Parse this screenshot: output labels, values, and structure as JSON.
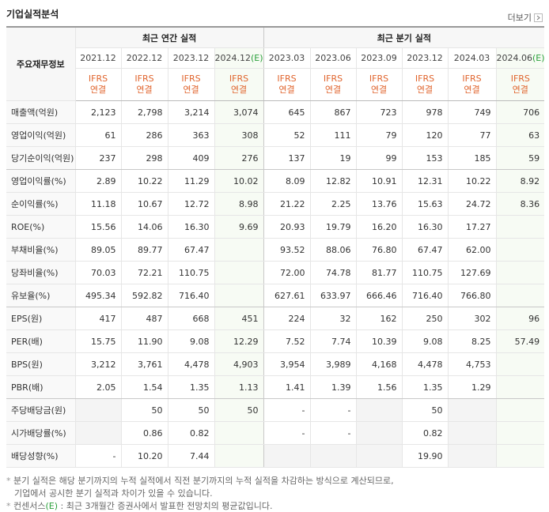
{
  "header": {
    "title": "기업실적분석",
    "more": "더보기"
  },
  "table": {
    "corner": "주요재무정보",
    "groups": [
      "최근 연간 실적",
      "최근 분기 실적"
    ],
    "group_spans": [
      4,
      6
    ],
    "periods": [
      {
        "label": "2021.12"
      },
      {
        "label": "2022.12"
      },
      {
        "label": "2023.12"
      },
      {
        "label": "2024.12",
        "mark": "(E)"
      },
      {
        "label": "2023.03"
      },
      {
        "label": "2023.06"
      },
      {
        "label": "2023.09"
      },
      {
        "label": "2023.12"
      },
      {
        "label": "2024.03"
      },
      {
        "label": "2024.06",
        "mark": "(E)"
      }
    ],
    "standard": [
      "IFRS",
      "연결"
    ],
    "rows": [
      {
        "label": "매출액(억원)",
        "cells": [
          "2,123",
          "2,798",
          "3,214",
          "3,074",
          "645",
          "867",
          "723",
          "978",
          "749",
          "706"
        ]
      },
      {
        "label": "영업이익(억원)",
        "cells": [
          "61",
          "286",
          "363",
          "308",
          "52",
          "111",
          "79",
          "120",
          "77",
          "63"
        ]
      },
      {
        "label": "당기순이익(억원)",
        "cells": [
          "237",
          "298",
          "409",
          "276",
          "137",
          "19",
          "99",
          "153",
          "185",
          "59"
        ]
      },
      {
        "label": "영업이익률(%)",
        "cells": [
          "2.89",
          "10.22",
          "11.29",
          "10.02",
          "8.09",
          "12.82",
          "10.91",
          "12.31",
          "10.22",
          "8.92"
        ]
      },
      {
        "label": "순이익률(%)",
        "cells": [
          "11.18",
          "10.67",
          "12.72",
          "8.98",
          "21.22",
          "2.25",
          "13.76",
          "15.63",
          "24.72",
          "8.36"
        ]
      },
      {
        "label": "ROE(%)",
        "cells": [
          "15.56",
          "14.06",
          "16.30",
          "9.69",
          "20.93",
          "19.79",
          "16.20",
          "16.30",
          "17.27",
          null
        ]
      },
      {
        "label": "부채비율(%)",
        "cells": [
          "89.05",
          "89.77",
          "67.47",
          null,
          "93.52",
          "88.06",
          "76.80",
          "67.47",
          "62.00",
          null
        ]
      },
      {
        "label": "당좌비율(%)",
        "cells": [
          "70.03",
          "72.21",
          "110.75",
          null,
          "72.00",
          "74.78",
          "81.77",
          "110.75",
          "127.69",
          null
        ]
      },
      {
        "label": "유보율(%)",
        "cells": [
          "495.34",
          "592.82",
          "716.40",
          null,
          "627.61",
          "633.97",
          "666.46",
          "716.40",
          "766.80",
          null
        ]
      },
      {
        "label": "EPS(원)",
        "cells": [
          "417",
          "487",
          "668",
          "451",
          "224",
          "32",
          "162",
          "250",
          "302",
          "96"
        ]
      },
      {
        "label": "PER(배)",
        "cells": [
          "15.75",
          "11.90",
          "9.08",
          "12.29",
          "7.52",
          "7.74",
          "10.39",
          "9.08",
          "8.25",
          "57.49"
        ]
      },
      {
        "label": "BPS(원)",
        "cells": [
          "3,212",
          "3,761",
          "4,478",
          "4,903",
          "3,954",
          "3,989",
          "4,168",
          "4,478",
          "4,753",
          null
        ]
      },
      {
        "label": "PBR(배)",
        "cells": [
          "2.05",
          "1.54",
          "1.35",
          "1.13",
          "1.41",
          "1.39",
          "1.56",
          "1.35",
          "1.29",
          null
        ]
      },
      {
        "label": "주당배당금(원)",
        "cells": [
          null,
          "50",
          "50",
          "50",
          "-",
          "-",
          null,
          "50",
          null,
          null
        ]
      },
      {
        "label": "시가배당률(%)",
        "cells": [
          null,
          "0.86",
          "0.82",
          null,
          "-",
          "-",
          null,
          "0.82",
          null,
          null
        ]
      },
      {
        "label": "배당성향(%)",
        "cells": [
          "-",
          "10.20",
          "7.44",
          null,
          null,
          null,
          null,
          "19.90",
          null,
          null
        ]
      }
    ]
  },
  "notes": {
    "line1": "분기 실적은 해당 분기까지의 누적 실적에서 직전 분기까지의 누적 실적을 차감하는 방식으로 계산되므로,",
    "line2": "기업에서 공시한 분기 실적과 차이가 있을 수 있습니다.",
    "line3": [
      "컨센서스",
      "(E)",
      " : 최근 3개월간 증권사에서 발표한 전망치의 평균값입니다."
    ]
  }
}
